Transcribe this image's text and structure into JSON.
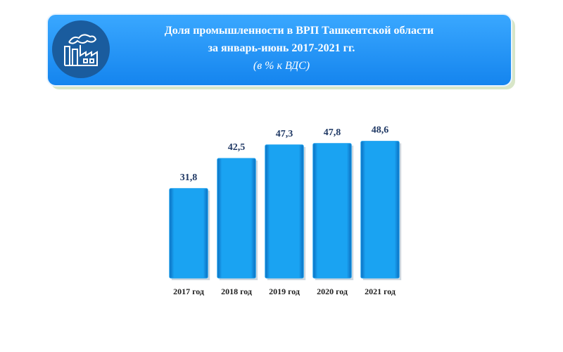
{
  "chart_data": {
    "type": "bar",
    "title": [
      "Доля промышленности в ВРП Ташкентской области",
      "за январь-июнь 2017-2021 гг."
    ],
    "subtitle": "(в % к ВДС)",
    "categories": [
      "2017 год",
      "2018 год",
      "2019 год",
      "2020 год",
      "2021 год"
    ],
    "values": [
      31.8,
      42.5,
      47.3,
      47.8,
      48.6
    ],
    "value_labels": [
      "31,8",
      "42,5",
      "47,3",
      "47,8",
      "48,6"
    ],
    "color": "#1aa0ee",
    "ylim": [
      0,
      60
    ]
  }
}
